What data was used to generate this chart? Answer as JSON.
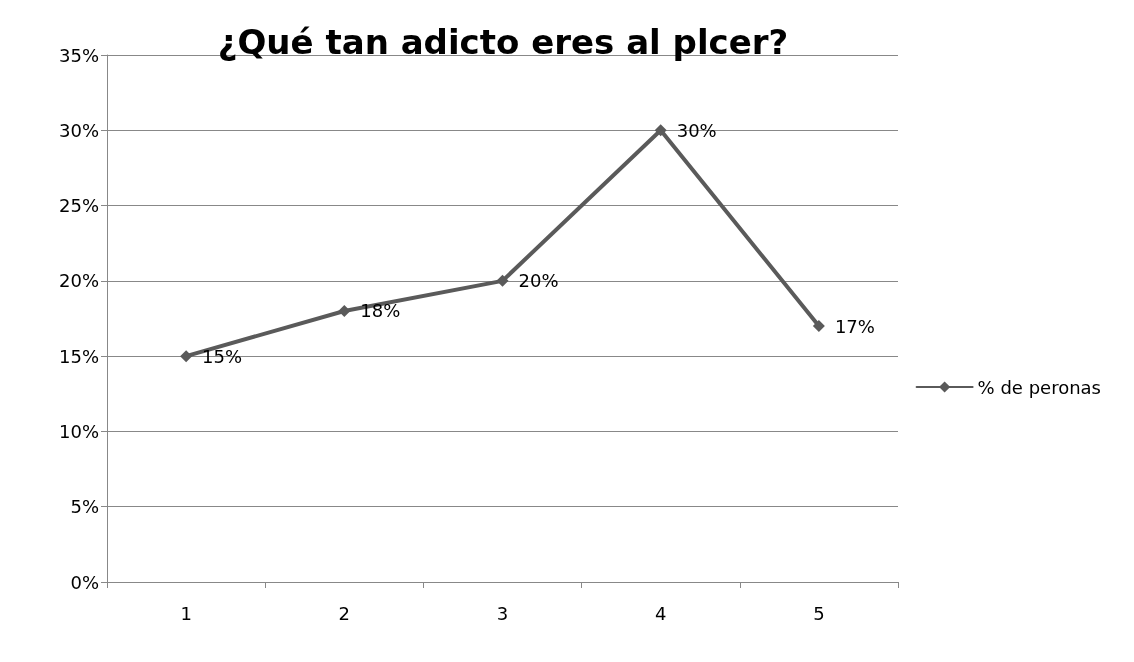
{
  "chart_data": {
    "type": "line",
    "title": "¿Qué tan adicto eres al plcer?",
    "categories": [
      "1",
      "2",
      "3",
      "4",
      "5"
    ],
    "series": [
      {
        "name": "% de peronas",
        "color": "#5a5a5a",
        "values": [
          15,
          18,
          20,
          30,
          17
        ],
        "value_labels": [
          "15%",
          "18%",
          "20%",
          "30%",
          "17%"
        ]
      }
    ],
    "ylim": [
      0,
      35
    ],
    "yticks": [
      {
        "value": 0,
        "label": "0%"
      },
      {
        "value": 5,
        "label": "5%"
      },
      {
        "value": 10,
        "label": "10%"
      },
      {
        "value": 15,
        "label": "15%"
      },
      {
        "value": 20,
        "label": "20%"
      },
      {
        "value": 25,
        "label": "25%"
      },
      {
        "value": 30,
        "label": "30%"
      },
      {
        "value": 35,
        "label": "35%"
      }
    ],
    "grid": "y",
    "legend": "right",
    "marker": "diamond",
    "line_style": "solid"
  }
}
